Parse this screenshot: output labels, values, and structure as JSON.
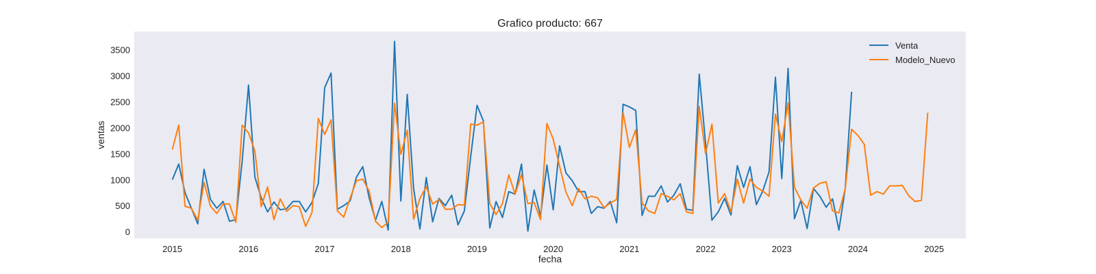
{
  "chart_data": {
    "type": "line",
    "title": "Grafico producto: 667",
    "xlabel": "fecha",
    "ylabel": "ventas",
    "x_ticks": [
      "2015",
      "2016",
      "2017",
      "2018",
      "2019",
      "2020",
      "2021",
      "2022",
      "2023",
      "2024",
      "2025"
    ],
    "y_ticks": [
      0,
      500,
      1000,
      1500,
      2000,
      2500,
      3000,
      3500
    ],
    "xlim": [
      "2014-07",
      "2025-06"
    ],
    "ylim": [
      -130,
      3850
    ],
    "grid": false,
    "legend_position": "top-right",
    "background_color": "#eaeaf2",
    "series": [
      {
        "name": "Venta",
        "color": "#1f77b4",
        "start": "2015-01",
        "values": [
          1000,
          1300,
          750,
          450,
          150,
          1200,
          620,
          450,
          580,
          200,
          230,
          1350,
          2820,
          1050,
          650,
          380,
          570,
          420,
          440,
          580,
          580,
          380,
          560,
          930,
          2770,
          3050,
          430,
          500,
          590,
          1050,
          1250,
          650,
          220,
          580,
          30,
          3660,
          590,
          2640,
          830,
          50,
          1040,
          190,
          640,
          500,
          700,
          130,
          400,
          1450,
          2430,
          2130,
          70,
          580,
          270,
          770,
          720,
          1300,
          10,
          800,
          300,
          1280,
          420,
          1650,
          1130,
          980,
          770,
          770,
          350,
          480,
          450,
          580,
          170,
          2450,
          2400,
          2330,
          310,
          680,
          680,
          880,
          570,
          700,
          920,
          430,
          410,
          3030,
          1700,
          220,
          380,
          640,
          320,
          1270,
          850,
          1250,
          520,
          780,
          1150,
          2970,
          1020,
          3140,
          250,
          600,
          60,
          830,
          680,
          470,
          630,
          30,
          830,
          2690
        ]
      },
      {
        "name": "Modelo_Nuevo",
        "color": "#ff7f0e",
        "start": "2015-01",
        "values": [
          1580,
          2050,
          490,
          450,
          220,
          950,
          490,
          350,
          530,
          530,
          180,
          2050,
          1900,
          1550,
          480,
          860,
          230,
          630,
          390,
          500,
          480,
          100,
          370,
          2180,
          1870,
          2150,
          400,
          280,
          640,
          980,
          1010,
          780,
          200,
          80,
          180,
          2470,
          1490,
          1950,
          240,
          640,
          860,
          530,
          620,
          430,
          430,
          520,
          510,
          2070,
          2050,
          2110,
          540,
          330,
          540,
          1090,
          720,
          1100,
          540,
          560,
          230,
          2080,
          1780,
          1260,
          760,
          500,
          830,
          630,
          680,
          650,
          460,
          550,
          620,
          2290,
          1620,
          1960,
          550,
          400,
          350,
          730,
          680,
          610,
          730,
          380,
          350,
          2410,
          1500,
          2070,
          550,
          730,
          380,
          1010,
          550,
          1010,
          850,
          780,
          680,
          2260,
          1730,
          2480,
          850,
          610,
          450,
          840,
          930,
          960,
          400,
          360,
          820,
          1970,
          1850,
          1680,
          700,
          770,
          720,
          880,
          880,
          890,
          690,
          580,
          600,
          2290
        ]
      }
    ]
  }
}
